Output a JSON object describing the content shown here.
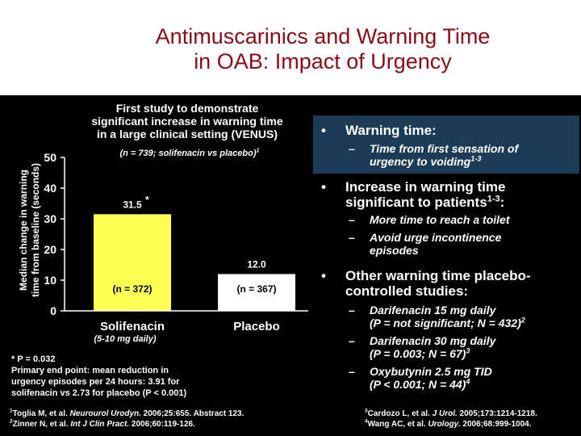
{
  "title_line1": "Antimuscarinics and Warning Time",
  "title_line2": "in OAB: Impact of Urgency",
  "study": {
    "line1": "First study to demonstrate",
    "line2": "significant increase in warning time",
    "line3": "in a large clinical setting (VENUS)",
    "n_text": "(n = 739; solifenacin vs placebo)",
    "n_sup": "1"
  },
  "chart_data": {
    "type": "bar",
    "categories": [
      "Solifenacin",
      "Placebo"
    ],
    "values": [
      31.5,
      12.0
    ],
    "value_labels": [
      "31.5",
      "12.0"
    ],
    "significance_marker": "*",
    "n_labels": [
      "(n = 372)",
      "(n = 367)"
    ],
    "category_sub": "(5-10 mg daily)",
    "ylabel": "Median change in warning time from baseline (seconds)",
    "ylabel_line1": "Median change in warning",
    "ylabel_line2": "time from baseline (seconds)",
    "yticks": [
      "0",
      "10",
      "20",
      "30",
      "40",
      "50"
    ],
    "ylim": [
      0,
      50
    ],
    "colors": {
      "solifenacin": "#ffff55",
      "placebo": "#ffffff",
      "axis": "#ffffff"
    }
  },
  "footnote": {
    "line1": "* P = 0.032",
    "line2": "Primary end point: mean reduction in",
    "line3": "urgency episodes per 24 hours: 3.91 for",
    "line4": "solifenacin vs 2.73 for placebo (P < 0.001)"
  },
  "bullets": {
    "b1": "Warning time:",
    "b1_sub_line1": "Time from first sensation of",
    "b1_sub_line2": "urgency to voiding",
    "b1_sub_sup": "1-3",
    "b2_line1": "Increase in warning time",
    "b2_line2": "significant to patients",
    "b2_sup": "1-3",
    "b2_suffix": ":",
    "b2_sub1": "More time to reach a toilet",
    "b2_sub2_line1": "Avoid urge incontinence",
    "b2_sub2_line2": "episodes",
    "b3_line1": "Other warning time placebo-",
    "b3_line2": "controlled studies:",
    "b3_sub1_line1": "Darifenacin 15 mg daily",
    "b3_sub1_line2": "(P = not significant; N = 432)",
    "b3_sub1_sup": "2",
    "b3_sub2_line1": "Darifenacin 30 mg daily",
    "b3_sub2_line2": "(P = 0.003; N = 67)",
    "b3_sub2_sup": "3",
    "b3_sub3_line1": "Oxybutynin 2.5 mg TID",
    "b3_sub3_line2": "(P < 0.001; N = 44)",
    "b3_sub3_sup": "4",
    "bullet_glyph": "•",
    "dash_glyph": "–"
  },
  "refs": {
    "r1_num": "1",
    "r1_a": "Toglia M, et al. ",
    "r1_j": "Neurourol Urodyn.",
    "r1_b": " 2006;25:655. Abstract 123.",
    "r2_num": "2",
    "r2_a": "Zinner N, et al. ",
    "r2_j": "Int J Clin Pract.",
    "r2_b": " 2006;60:119-126.",
    "r3_num": "3",
    "r3_a": "Cardozo L, et al. ",
    "r3_j": "J Urol.",
    "r3_b": " 2005;173:1214-1218.",
    "r4_num": "4",
    "r4_a": "Wang AC, et al. ",
    "r4_j": "Urology.",
    "r4_b": " 2006;68:999-1004."
  }
}
